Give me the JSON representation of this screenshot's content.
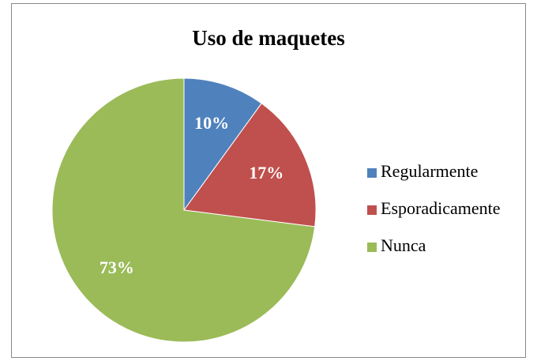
{
  "chart_data": {
    "type": "pie",
    "title": "Uso de maquetes",
    "categories": [
      "Regularmente",
      "Esporadicamente",
      "Nunca"
    ],
    "values": [
      10,
      17,
      73
    ],
    "value_labels": [
      "10%",
      "17%",
      "73%"
    ],
    "colors": [
      "#4f81bd",
      "#c0504d",
      "#9bbb59"
    ],
    "legend": "right"
  }
}
